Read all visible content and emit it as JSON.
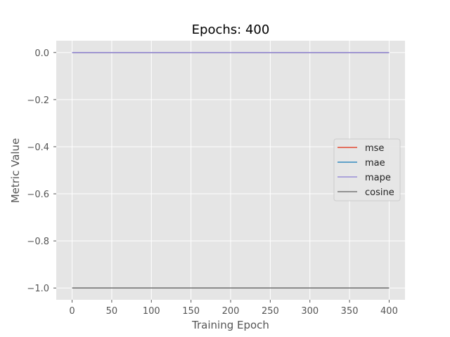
{
  "chart_data": {
    "type": "line",
    "title": "Epochs: 400",
    "xlabel": "Training Epoch",
    "ylabel": "Metric Value",
    "xlim": [
      -20,
      420
    ],
    "ylim": [
      -1.05,
      0.05
    ],
    "xticks": [
      0,
      50,
      100,
      150,
      200,
      250,
      300,
      350,
      400
    ],
    "xtick_labels": [
      "0",
      "50",
      "100",
      "150",
      "200",
      "250",
      "300",
      "350",
      "400"
    ],
    "yticks": [
      0.0,
      -0.2,
      -0.4,
      -0.6,
      -0.8,
      -1.0
    ],
    "ytick_labels": [
      "0.0",
      "−0.2",
      "−0.4",
      "−0.6",
      "−0.8",
      "−1.0"
    ],
    "grid": true,
    "background": "#e5e5e5",
    "legend_position": "center-right",
    "series": [
      {
        "name": "mse",
        "color": "#e24a33",
        "x": [
          0,
          400
        ],
        "y": [
          0.0,
          0.0
        ]
      },
      {
        "name": "mae",
        "color": "#348abd",
        "x": [
          0,
          400
        ],
        "y": [
          0.0,
          0.0
        ]
      },
      {
        "name": "mape",
        "color": "#988ed5",
        "x": [
          0,
          400
        ],
        "y": [
          0.0,
          0.0
        ]
      },
      {
        "name": "cosine",
        "color": "#777777",
        "x": [
          0,
          400
        ],
        "y": [
          -1.0,
          -1.0
        ]
      }
    ]
  }
}
